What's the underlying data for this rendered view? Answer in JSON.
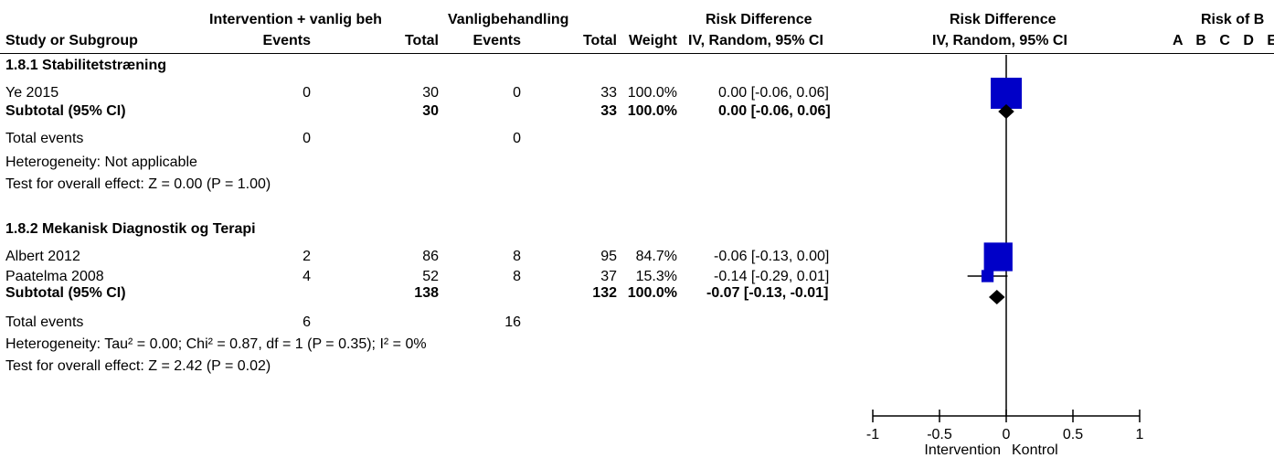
{
  "headers": {
    "group_intervention": "Intervention + vanlig beh",
    "group_control": "Vanligbehandling",
    "rd_numeric": "Risk Difference",
    "rd_plot": "Risk Difference",
    "risk_of_bias": "Risk of B",
    "study_col": "Study or Subgroup",
    "events_i": "Events",
    "total_i": "Total",
    "events_c": "Events",
    "total_c": "Total",
    "weight": "Weight",
    "method_numeric": "IV, Random, 95% CI",
    "method_plot": "IV, Random, 95% CI",
    "bias_letters": "A B C D E"
  },
  "chart_data": {
    "type": "forest",
    "xlim": [
      -1,
      1
    ],
    "ticks": [
      -1,
      -0.5,
      0,
      0.5,
      1
    ],
    "tick_labels": [
      "-1",
      "-0.5",
      "0",
      "0.5",
      "1"
    ],
    "favours_left": "Intervention",
    "favours_right": "Kontrol",
    "subgroups": [
      {
        "title": "1.8.1 Stabilitetstræning",
        "studies": [
          {
            "name": "Ye 2015",
            "events_i": "0",
            "total_i": "30",
            "events_c": "0",
            "total_c": "33",
            "weight": "100.0%",
            "ci_text": "0.00 [-0.06, 0.06]",
            "rd": 0.0,
            "lo": -0.06,
            "hi": 0.06,
            "w": 100.0
          }
        ],
        "subtotal": {
          "label": "Subtotal (95% CI)",
          "total_i": "30",
          "total_c": "33",
          "weight": "100.0%",
          "ci_text": "0.00 [-0.06, 0.06]",
          "rd": 0.0,
          "lo": -0.06,
          "hi": 0.06
        },
        "total_events": {
          "label": "Total events",
          "events_i": "0",
          "events_c": "0"
        },
        "heterogeneity": "Heterogeneity: Not applicable",
        "overall_effect": "Test for overall effect: Z = 0.00 (P = 1.00)"
      },
      {
        "title": "1.8.2 Mekanisk Diagnostik og Terapi",
        "studies": [
          {
            "name": "Albert 2012",
            "events_i": "2",
            "total_i": "86",
            "events_c": "8",
            "total_c": "95",
            "weight": "84.7%",
            "ci_text": "-0.06 [-0.13, 0.00]",
            "rd": -0.06,
            "lo": -0.13,
            "hi": 0.0,
            "w": 84.7
          },
          {
            "name": "Paatelma 2008",
            "events_i": "4",
            "total_i": "52",
            "events_c": "8",
            "total_c": "37",
            "weight": "15.3%",
            "ci_text": "-0.14 [-0.29, 0.01]",
            "rd": -0.14,
            "lo": -0.29,
            "hi": 0.01,
            "w": 15.3
          }
        ],
        "subtotal": {
          "label": "Subtotal (95% CI)",
          "total_i": "138",
          "total_c": "132",
          "weight": "100.0%",
          "ci_text": "-0.07 [-0.13, -0.01]",
          "rd": -0.07,
          "lo": -0.13,
          "hi": -0.01
        },
        "total_events": {
          "label": "Total events",
          "events_i": "6",
          "events_c": "16"
        },
        "heterogeneity": "Heterogeneity: Tau² = 0.00; Chi² = 0.87, df = 1 (P = 0.35); I² = 0%",
        "overall_effect": "Test for overall effect: Z = 2.42 (P = 0.02)"
      }
    ]
  },
  "colors": {
    "study_box": "#0000c8",
    "diamond": "#000000",
    "axis": "#000000"
  }
}
